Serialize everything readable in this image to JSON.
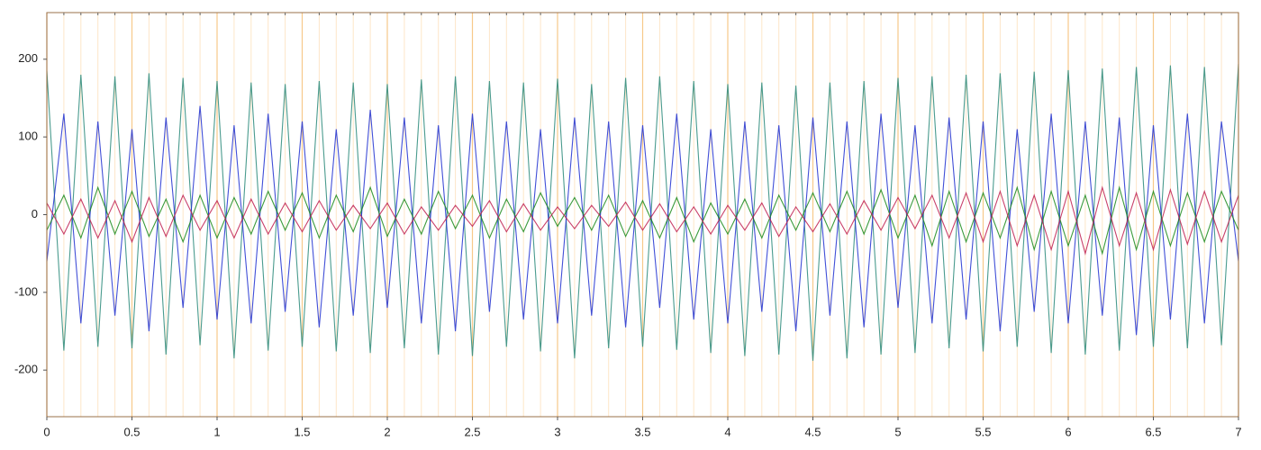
{
  "chart_data": {
    "type": "line",
    "x": [
      0,
      0.1,
      0.2,
      0.3,
      0.4,
      0.5,
      0.6,
      0.7,
      0.8,
      0.9,
      1,
      1.1,
      1.2,
      1.3,
      1.4,
      1.5,
      1.6,
      1.7,
      1.8,
      1.9,
      2,
      2.1,
      2.2,
      2.3,
      2.4,
      2.5,
      2.6,
      2.7,
      2.8,
      2.9,
      3,
      3.1,
      3.2,
      3.3,
      3.4,
      3.5,
      3.6,
      3.7,
      3.8,
      3.9,
      4,
      4.1,
      4.2,
      4.3,
      4.4,
      4.5,
      4.6,
      4.7,
      4.8,
      4.9,
      5,
      5.1,
      5.2,
      5.3,
      5.4,
      5.5,
      5.6,
      5.7,
      5.8,
      5.9,
      6,
      6.1,
      6.2,
      6.3,
      6.4,
      6.5,
      6.6,
      6.7,
      6.8,
      6.9,
      7
    ],
    "series": [
      {
        "color": "#2a8a7a",
        "values": [
          185,
          -175,
          180,
          -170,
          178,
          -172,
          182,
          -180,
          176,
          -168,
          172,
          -185,
          170,
          -175,
          168,
          -170,
          172,
          -176,
          170,
          -178,
          168,
          -172,
          174,
          -180,
          178,
          -182,
          172,
          -170,
          170,
          -176,
          175,
          -185,
          168,
          -172,
          176,
          -170,
          178,
          -174,
          172,
          -178,
          168,
          -182,
          170,
          -180,
          166,
          -188,
          170,
          -185,
          172,
          -180,
          176,
          -178,
          178,
          -172,
          180,
          -176,
          182,
          -170,
          184,
          -178,
          186,
          -180,
          188,
          -175,
          190,
          -170,
          192,
          -172,
          190,
          -168,
          194
        ]
      },
      {
        "color": "#2030d0",
        "values": [
          -60,
          130,
          -140,
          120,
          -130,
          110,
          -150,
          125,
          -120,
          140,
          -135,
          115,
          -140,
          130,
          -125,
          120,
          -145,
          110,
          -130,
          135,
          -120,
          125,
          -140,
          115,
          -150,
          130,
          -125,
          120,
          -135,
          110,
          -140,
          125,
          -130,
          120,
          -145,
          115,
          -120,
          130,
          -135,
          110,
          -140,
          120,
          -125,
          115,
          -150,
          125,
          -130,
          120,
          -145,
          130,
          -120,
          115,
          -140,
          125,
          -135,
          120,
          -150,
          110,
          -125,
          130,
          -140,
          120,
          -130,
          125,
          -155,
          115,
          -135,
          130,
          -140,
          120,
          -60
        ]
      },
      {
        "color": "#1a8a1a",
        "values": [
          -20,
          25,
          -30,
          35,
          -25,
          30,
          -28,
          20,
          -35,
          25,
          -30,
          22,
          -25,
          30,
          -20,
          28,
          -30,
          25,
          -22,
          35,
          -28,
          20,
          -25,
          30,
          -18,
          25,
          -30,
          20,
          -22,
          28,
          -15,
          22,
          -20,
          25,
          -28,
          18,
          -30,
          22,
          -35,
          15,
          -25,
          20,
          -30,
          25,
          -20,
          28,
          -22,
          30,
          -25,
          32,
          -30,
          25,
          -40,
          30,
          -35,
          28,
          -30,
          35,
          -45,
          30,
          -40,
          25,
          -50,
          35,
          -45,
          30,
          -40,
          28,
          -35,
          30,
          -20
        ]
      },
      {
        "color": "#c02050",
        "values": [
          15,
          -25,
          20,
          -30,
          18,
          -35,
          22,
          -28,
          25,
          -20,
          18,
          -30,
          20,
          -25,
          15,
          -22,
          18,
          -20,
          12,
          -18,
          15,
          -25,
          10,
          -20,
          12,
          -15,
          18,
          -22,
          14,
          -20,
          10,
          -18,
          12,
          -15,
          16,
          -20,
          14,
          -22,
          10,
          -25,
          12,
          -20,
          15,
          -28,
          10,
          -22,
          14,
          -25,
          18,
          -20,
          22,
          -18,
          25,
          -30,
          28,
          -35,
          30,
          -40,
          25,
          -45,
          30,
          -50,
          35,
          -40,
          28,
          -45,
          32,
          -38,
          30,
          -35,
          25
        ]
      }
    ],
    "xlim": [
      0,
      7
    ],
    "xticks": [
      0,
      0.5,
      1,
      1.5,
      2,
      2.5,
      3,
      3.5,
      4,
      4.5,
      5,
      5.5,
      6,
      6.5,
      7
    ],
    "minor_xticks": [
      0.1,
      0.2,
      0.3,
      0.4,
      0.6,
      0.7,
      0.8,
      0.9,
      1.1,
      1.2,
      1.3,
      1.4,
      1.6,
      1.7,
      1.8,
      1.9,
      2.1,
      2.2,
      2.3,
      2.4,
      2.6,
      2.7,
      2.8,
      2.9,
      3.1,
      3.2,
      3.3,
      3.4,
      3.6,
      3.7,
      3.8,
      3.9,
      4.1,
      4.2,
      4.3,
      4.4,
      4.6,
      4.7,
      4.8,
      4.9,
      5.1,
      5.2,
      5.3,
      5.4,
      5.6,
      5.7,
      5.8,
      5.9,
      6.1,
      6.2,
      6.3,
      6.4,
      6.6,
      6.7,
      6.8,
      6.9
    ],
    "ylim": [
      -260,
      260
    ],
    "yticks": [
      -200,
      -100,
      0,
      100,
      200
    ],
    "grid": true
  }
}
